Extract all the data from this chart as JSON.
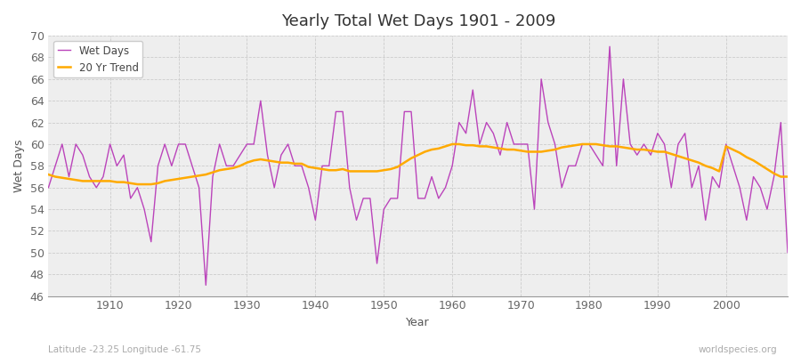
{
  "title": "Yearly Total Wet Days 1901 - 2009",
  "xlabel": "Year",
  "ylabel": "Wet Days",
  "subtitle": "Latitude -23.25 Longitude -61.75",
  "watermark": "worldspecies.org",
  "line_color": "#bb44bb",
  "trend_color": "#ffaa00",
  "fig_bg_color": "#ffffff",
  "plot_bg_color": "#eeeeee",
  "ylim": [
    46,
    70
  ],
  "xlim": [
    1901,
    2009
  ],
  "yticks": [
    46,
    48,
    50,
    52,
    54,
    56,
    58,
    60,
    62,
    64,
    66,
    68,
    70
  ],
  "xticks": [
    1910,
    1920,
    1930,
    1940,
    1950,
    1960,
    1970,
    1980,
    1990,
    2000
  ],
  "years": [
    1901,
    1902,
    1903,
    1904,
    1905,
    1906,
    1907,
    1908,
    1909,
    1910,
    1911,
    1912,
    1913,
    1914,
    1915,
    1916,
    1917,
    1918,
    1919,
    1920,
    1921,
    1922,
    1923,
    1924,
    1925,
    1926,
    1927,
    1928,
    1929,
    1930,
    1931,
    1932,
    1933,
    1934,
    1935,
    1936,
    1937,
    1938,
    1939,
    1940,
    1941,
    1942,
    1943,
    1944,
    1945,
    1946,
    1947,
    1948,
    1949,
    1950,
    1951,
    1952,
    1953,
    1954,
    1955,
    1956,
    1957,
    1958,
    1959,
    1960,
    1961,
    1962,
    1963,
    1964,
    1965,
    1966,
    1967,
    1968,
    1969,
    1970,
    1971,
    1972,
    1973,
    1974,
    1975,
    1976,
    1977,
    1978,
    1979,
    1980,
    1981,
    1982,
    1983,
    1984,
    1985,
    1986,
    1987,
    1988,
    1989,
    1990,
    1991,
    1992,
    1993,
    1994,
    1995,
    1996,
    1997,
    1998,
    1999,
    2000,
    2001,
    2002,
    2003,
    2004,
    2005,
    2006,
    2007,
    2008,
    2009
  ],
  "wet_days": [
    56,
    58,
    60,
    57,
    60,
    59,
    57,
    56,
    57,
    60,
    58,
    59,
    55,
    56,
    54,
    51,
    58,
    60,
    58,
    60,
    60,
    58,
    56,
    47,
    57,
    60,
    58,
    58,
    59,
    60,
    60,
    64,
    59,
    56,
    59,
    60,
    58,
    58,
    56,
    53,
    58,
    58,
    63,
    63,
    56,
    53,
    55,
    55,
    49,
    54,
    55,
    55,
    63,
    63,
    55,
    55,
    57,
    55,
    56,
    58,
    62,
    61,
    65,
    60,
    62,
    61,
    59,
    62,
    60,
    60,
    60,
    54,
    66,
    62,
    60,
    56,
    58,
    58,
    60,
    60,
    59,
    58,
    69,
    58,
    66,
    60,
    59,
    60,
    59,
    61,
    60,
    56,
    60,
    61,
    56,
    58,
    53,
    57,
    56,
    60,
    58,
    56,
    53,
    57,
    56,
    54,
    57,
    62,
    50
  ],
  "trend_years": [
    1901,
    1902,
    1903,
    1904,
    1905,
    1906,
    1907,
    1908,
    1909,
    1910,
    1911,
    1912,
    1913,
    1914,
    1915,
    1916,
    1917,
    1918,
    1919,
    1920,
    1921,
    1922,
    1923,
    1924,
    1925,
    1926,
    1927,
    1928,
    1929,
    1930,
    1931,
    1932,
    1933,
    1934,
    1935,
    1936,
    1937,
    1938,
    1939,
    1940,
    1941,
    1942,
    1943,
    1944,
    1945,
    1946,
    1947,
    1948,
    1949,
    1950,
    1951,
    1952,
    1953,
    1954,
    1955,
    1956,
    1957,
    1958,
    1959,
    1960,
    1961,
    1962,
    1963,
    1964,
    1965,
    1966,
    1967,
    1968,
    1969,
    1970,
    1971,
    1972,
    1973,
    1974,
    1975,
    1976,
    1977,
    1978,
    1979,
    1980,
    1981,
    1982,
    1983,
    1984,
    1985,
    1986,
    1987,
    1988,
    1989,
    1990,
    1991,
    1992,
    1993,
    1994,
    1995,
    1996,
    1997,
    1998,
    1999,
    2000,
    2001,
    2002,
    2003,
    2004,
    2005,
    2006,
    2007,
    2008,
    2009
  ],
  "trend_values": [
    57.2,
    57.0,
    56.9,
    56.8,
    56.7,
    56.6,
    56.6,
    56.6,
    56.6,
    56.6,
    56.5,
    56.5,
    56.4,
    56.3,
    56.3,
    56.3,
    56.4,
    56.6,
    56.7,
    56.8,
    56.9,
    57.0,
    57.1,
    57.2,
    57.4,
    57.6,
    57.7,
    57.8,
    58.0,
    58.3,
    58.5,
    58.6,
    58.5,
    58.4,
    58.3,
    58.3,
    58.2,
    58.2,
    57.9,
    57.8,
    57.7,
    57.6,
    57.6,
    57.7,
    57.5,
    57.5,
    57.5,
    57.5,
    57.5,
    57.6,
    57.7,
    57.9,
    58.3,
    58.7,
    59.0,
    59.3,
    59.5,
    59.6,
    59.8,
    60.0,
    60.0,
    59.9,
    59.9,
    59.8,
    59.8,
    59.7,
    59.6,
    59.5,
    59.5,
    59.4,
    59.3,
    59.3,
    59.3,
    59.4,
    59.5,
    59.7,
    59.8,
    59.9,
    60.0,
    60.0,
    60.0,
    59.9,
    59.8,
    59.8,
    59.7,
    59.6,
    59.5,
    59.5,
    59.4,
    59.3,
    59.3,
    59.1,
    58.9,
    58.7,
    58.5,
    58.3,
    58.0,
    57.8,
    57.5,
    59.8,
    59.5,
    59.2,
    58.8,
    58.5,
    58.1,
    57.7,
    57.3,
    57.0,
    57.0
  ]
}
